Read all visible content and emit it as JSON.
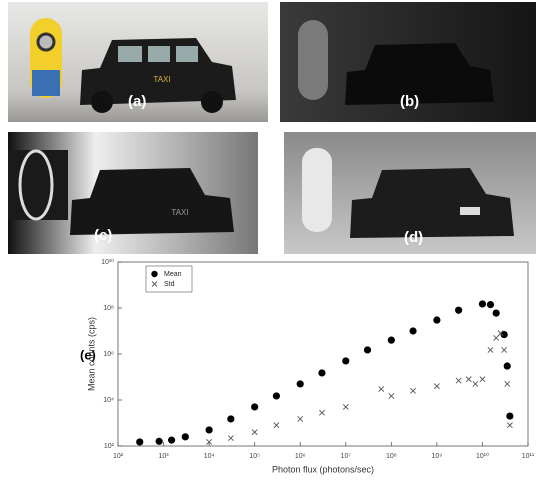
{
  "panels": [
    {
      "label": "(a)"
    },
    {
      "label": "(b)"
    },
    {
      "label": "(c)"
    },
    {
      "label": "(d)"
    }
  ],
  "chart_data": {
    "type": "scatter",
    "panel_label": "(e)",
    "x_label": "Photon flux (photons/sec)",
    "y_label": "Mean counts (cps)",
    "x_log": true,
    "y_log": true,
    "legend": "upper left",
    "xlim": [
      100,
      100000000000
    ],
    "ylim": [
      100,
      10000000000
    ],
    "xticks": [
      {
        "value": 100,
        "label": "10²"
      },
      {
        "value": 1000,
        "label": "10³"
      },
      {
        "value": 10000,
        "label": "10⁴"
      },
      {
        "value": 100000,
        "label": "10⁵"
      },
      {
        "value": 1000000,
        "label": "10⁶"
      },
      {
        "value": 10000000,
        "label": "10⁷"
      },
      {
        "value": 100000000,
        "label": "10⁸"
      },
      {
        "value": 1000000000,
        "label": "10⁹"
      },
      {
        "value": 10000000000,
        "label": "10¹⁰"
      },
      {
        "value": 100000000000,
        "label": "10¹¹"
      }
    ],
    "yticks": [
      {
        "value": 100,
        "label": "10²"
      },
      {
        "value": 10000,
        "label": "10⁴"
      },
      {
        "value": 1000000,
        "label": "10⁶"
      },
      {
        "value": 100000000,
        "label": "10⁸"
      },
      {
        "value": 10000000000,
        "label": "10¹⁰"
      }
    ],
    "series": [
      {
        "name": "Mean",
        "marker": "circle",
        "color": "#000000",
        "x": [
          300,
          800,
          1500,
          3000,
          10000,
          30000,
          100000,
          300000,
          1000000,
          3000000,
          10000000,
          30000000,
          100000000,
          300000000,
          1000000000,
          3000000000,
          10000000000,
          15000000000,
          20000000000,
          30000000000,
          35000000000,
          40000000000
        ],
        "values": [
          150,
          160,
          180,
          250,
          500,
          1500,
          5000,
          15000,
          50000,
          150000,
          500000,
          1500000,
          4000000,
          10000000,
          30000000,
          80000000,
          150000000,
          140000000,
          60000000,
          7000000,
          300000,
          2000
        ]
      },
      {
        "name": "Std",
        "marker": "x",
        "color": "#555555",
        "x": [
          10000,
          30000,
          100000,
          300000,
          1000000,
          3000000,
          10000000,
          60000000,
          100000000,
          300000000,
          1000000000,
          3000000000,
          5000000000,
          7000000000,
          10000000000,
          15000000000,
          20000000000,
          25000000000,
          30000000000,
          35000000000,
          40000000000
        ],
        "values": [
          150,
          220,
          400,
          800,
          1500,
          2800,
          5000,
          30000,
          15000,
          25000,
          40000,
          70000,
          80000,
          50000,
          80000,
          1500000,
          5000000,
          8000000,
          1500000,
          50000,
          800
        ]
      }
    ]
  }
}
